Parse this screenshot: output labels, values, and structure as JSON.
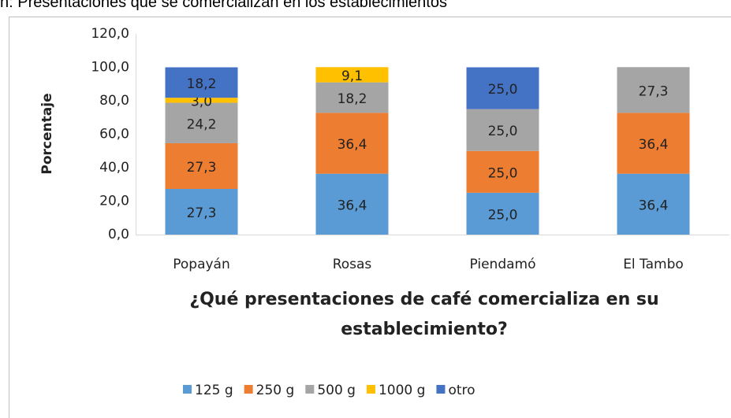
{
  "caption": "n: Presentaciones que se comercializan en los establecimientos",
  "chart_data": {
    "type": "stacked-bar",
    "x_label": "¿Qué presentaciones de café comercializa en su establecimiento?",
    "y_label": "Porcentaje",
    "categories": [
      "Popayán",
      "Rosas",
      "Piendamó",
      "El Tambo"
    ],
    "series": [
      {
        "name": "125 g",
        "color": "#5b9bd5",
        "values": [
          27.3,
          36.4,
          25.0,
          36.4
        ],
        "value_labels": [
          "27,3",
          "36,4",
          "25,0",
          "36,4"
        ]
      },
      {
        "name": "250 g",
        "color": "#ed7d31",
        "values": [
          27.3,
          36.4,
          25.0,
          36.4
        ],
        "value_labels": [
          "27,3",
          "36,4",
          "25,0",
          "36,4"
        ]
      },
      {
        "name": "500 g",
        "color": "#a5a5a5",
        "values": [
          24.2,
          18.2,
          25.0,
          27.3
        ],
        "value_labels": [
          "24,2",
          "18,2",
          "25,0",
          "27,3"
        ]
      },
      {
        "name": "1000 g",
        "color": "#ffc000",
        "values": [
          3.0,
          9.1,
          null,
          null
        ],
        "value_labels": [
          "3,0",
          "9,1",
          null,
          null
        ]
      },
      {
        "name": "otro",
        "color": "#4472c4",
        "values": [
          18.2,
          null,
          25.0,
          null
        ],
        "value_labels": [
          "18,2",
          null,
          "25,0",
          null
        ]
      }
    ],
    "ylim": [
      0,
      120
    ],
    "yticks": [
      {
        "value": 0,
        "label": "0,0"
      },
      {
        "value": 20,
        "label": "20,0"
      },
      {
        "value": 40,
        "label": "40,0"
      },
      {
        "value": 60,
        "label": "60,0"
      },
      {
        "value": 80,
        "label": "80,0"
      },
      {
        "value": 100,
        "label": "100,0"
      },
      {
        "value": 120,
        "label": "120,0"
      }
    ],
    "legend": "bottom"
  }
}
